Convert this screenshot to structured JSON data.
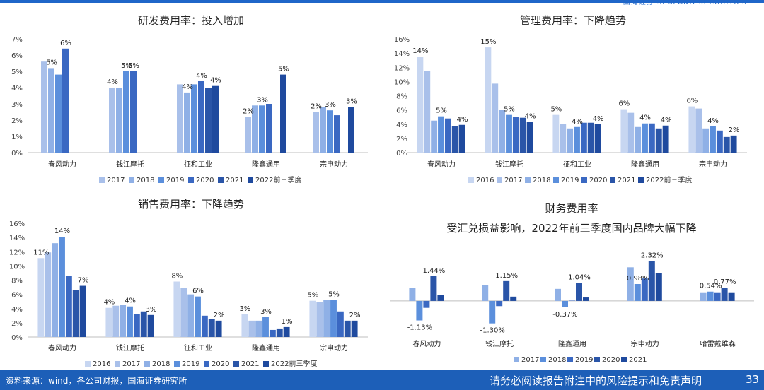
{
  "header": {
    "brand": "国海证券 SEALAND SECURITIES"
  },
  "footer": {
    "source": "资料来源：wind，各公司财报，国海证券研究所",
    "disclaimer": "请务必阅读报告附注中的风险提示和免责声明",
    "page": "33"
  },
  "colors": [
    "#c7d6f1",
    "#a9c0ea",
    "#8fb0e6",
    "#5b8fdc",
    "#3a68c2",
    "#2a55a8",
    "#1f4a9e"
  ],
  "chart_data": [
    {
      "id": "rd",
      "type": "bar",
      "title": "研发费用率：投入增加",
      "categories": [
        "春风动力",
        "钱江摩托",
        "征和工业",
        "隆鑫通用",
        "宗申动力"
      ],
      "yticks": [
        "0%",
        "1%",
        "2%",
        "3%",
        "4%",
        "5%",
        "6%",
        "7%"
      ],
      "ylim": [
        0,
        7
      ],
      "series": [
        {
          "name": "2017",
          "values": [
            5.6,
            4.0,
            4.2,
            2.2,
            2.5
          ]
        },
        {
          "name": "2018",
          "values": [
            5.2,
            4.0,
            3.7,
            2.9,
            2.8
          ]
        },
        {
          "name": "2019",
          "values": [
            4.8,
            5.0,
            4.2,
            2.9,
            2.6
          ]
        },
        {
          "name": "2020",
          "values": [
            6.4,
            5.0,
            4.4,
            3.0,
            2.3
          ]
        },
        {
          "name": "2021",
          "values": [
            null,
            null,
            4.0,
            null,
            null
          ]
        },
        {
          "name": "2022前三季度",
          "values": [
            null,
            null,
            4.1,
            4.8,
            2.8
          ]
        }
      ],
      "labels": [
        {
          "c": 0,
          "s": 1,
          "text": "5%"
        },
        {
          "c": 0,
          "s": 3,
          "text": "6%"
        },
        {
          "c": 1,
          "s": 0,
          "text": "4%"
        },
        {
          "c": 1,
          "s": 2,
          "text": "5%"
        },
        {
          "c": 1,
          "s": 3,
          "text": "5%"
        },
        {
          "c": 2,
          "s": 1,
          "text": "4%"
        },
        {
          "c": 2,
          "s": 3,
          "text": "4%"
        },
        {
          "c": 2,
          "s": 5,
          "text": "4%"
        },
        {
          "c": 3,
          "s": 0,
          "text": "2%"
        },
        {
          "c": 3,
          "s": 2,
          "text": "3%"
        },
        {
          "c": 3,
          "s": 5,
          "text": "5%"
        },
        {
          "c": 4,
          "s": 0,
          "text": "2%"
        },
        {
          "c": 4,
          "s": 2,
          "text": "3%"
        },
        {
          "c": 4,
          "s": 5,
          "text": "3%"
        }
      ]
    },
    {
      "id": "mgmt",
      "type": "bar",
      "title": "管理费用率：下降趋势",
      "categories": [
        "春风动力",
        "钱江摩托",
        "征和工业",
        "隆鑫通用",
        "宗申动力"
      ],
      "yticks": [
        "0%",
        "2%",
        "4%",
        "6%",
        "8%",
        "10%",
        "12%",
        "14%",
        "16%"
      ],
      "ylim": [
        0,
        16
      ],
      "series": [
        {
          "name": "2016",
          "values": [
            13.5,
            14.8,
            5.3,
            6.1,
            6.5
          ]
        },
        {
          "name": "2017",
          "values": [
            11.5,
            9.7,
            4.0,
            5.6,
            6.2
          ]
        },
        {
          "name": "2018",
          "values": [
            4.5,
            6.0,
            3.4,
            3.6,
            3.4
          ]
        },
        {
          "name": "2019",
          "values": [
            5.1,
            5.3,
            3.6,
            4.1,
            3.7
          ]
        },
        {
          "name": "2020",
          "values": [
            4.8,
            5.0,
            4.2,
            4.1,
            3.1
          ]
        },
        {
          "name": "2021",
          "values": [
            3.7,
            4.9,
            4.2,
            3.4,
            2.2
          ]
        },
        {
          "name": "2022前三季度",
          "values": [
            3.9,
            4.3,
            4.0,
            3.8,
            2.4
          ]
        }
      ],
      "labels": [
        {
          "c": 0,
          "s": 0,
          "text": "14%"
        },
        {
          "c": 0,
          "s": 3,
          "text": "5%"
        },
        {
          "c": 0,
          "s": 6,
          "text": "4%"
        },
        {
          "c": 1,
          "s": 0,
          "text": "15%"
        },
        {
          "c": 1,
          "s": 3,
          "text": "5%"
        },
        {
          "c": 1,
          "s": 6,
          "text": "4%"
        },
        {
          "c": 2,
          "s": 0,
          "text": "5%"
        },
        {
          "c": 2,
          "s": 3,
          "text": "4%"
        },
        {
          "c": 2,
          "s": 6,
          "text": "4%"
        },
        {
          "c": 3,
          "s": 0,
          "text": "6%"
        },
        {
          "c": 3,
          "s": 3,
          "text": "4%"
        },
        {
          "c": 3,
          "s": 6,
          "text": "4%"
        },
        {
          "c": 4,
          "s": 0,
          "text": "6%"
        },
        {
          "c": 4,
          "s": 3,
          "text": "4%"
        },
        {
          "c": 4,
          "s": 6,
          "text": "2%"
        }
      ]
    },
    {
      "id": "sales",
      "type": "bar",
      "title": "销售费用率：下降趋势",
      "categories": [
        "春风动力",
        "钱江摩托",
        "征和工业",
        "隆鑫通用",
        "宗申动力"
      ],
      "yticks": [
        "0%",
        "2%",
        "4%",
        "6%",
        "8%",
        "10%",
        "12%",
        "14%",
        "16%"
      ],
      "ylim": [
        0,
        16
      ],
      "series": [
        {
          "name": "2016",
          "values": [
            11.1,
            4.1,
            7.8,
            3.2,
            5.1
          ]
        },
        {
          "name": "2017",
          "values": [
            11.9,
            4.4,
            6.9,
            2.3,
            4.9
          ]
        },
        {
          "name": "2018",
          "values": [
            13.2,
            4.5,
            6.0,
            2.3,
            5.2
          ]
        },
        {
          "name": "2019",
          "values": [
            14.1,
            4.3,
            5.7,
            2.8,
            5.2
          ]
        },
        {
          "name": "2020",
          "values": [
            8.6,
            3.2,
            3.0,
            1.0,
            3.6
          ]
        },
        {
          "name": "2021",
          "values": [
            6.6,
            3.6,
            2.5,
            1.2,
            2.3
          ]
        },
        {
          "name": "2022前三季度",
          "values": [
            7.2,
            3.1,
            2.3,
            1.4,
            2.3
          ]
        }
      ],
      "labels": [
        {
          "c": 0,
          "s": 0,
          "text": "11%"
        },
        {
          "c": 0,
          "s": 3,
          "text": "14%"
        },
        {
          "c": 0,
          "s": 6,
          "text": "7%"
        },
        {
          "c": 1,
          "s": 0,
          "text": "4%"
        },
        {
          "c": 1,
          "s": 3,
          "text": "4%"
        },
        {
          "c": 1,
          "s": 6,
          "text": "3%"
        },
        {
          "c": 2,
          "s": 0,
          "text": "8%"
        },
        {
          "c": 2,
          "s": 3,
          "text": "6%"
        },
        {
          "c": 2,
          "s": 6,
          "text": "2%"
        },
        {
          "c": 3,
          "s": 0,
          "text": "3%"
        },
        {
          "c": 3,
          "s": 3,
          "text": "3%"
        },
        {
          "c": 3,
          "s": 6,
          "text": "1%"
        },
        {
          "c": 4,
          "s": 0,
          "text": "5%"
        },
        {
          "c": 4,
          "s": 3,
          "text": "5%"
        },
        {
          "c": 4,
          "s": 6,
          "text": "2%"
        }
      ]
    },
    {
      "id": "fin",
      "type": "bar",
      "title": "财务费用率",
      "subtitle": "受汇兑损益影响，2022年前三季度国内品牌大幅下降",
      "categories": [
        "春风动力",
        "钱江摩托",
        "隆鑫通用",
        "宗申动力",
        "哈雷戴维森"
      ],
      "ylim": [
        -1.6,
        2.7
      ],
      "series": [
        {
          "name": "2017",
          "values": [
            0.75,
            0.9,
            0.7,
            1.95,
            0.5
          ]
        },
        {
          "name": "2018",
          "values": [
            -1.13,
            -1.3,
            -0.37,
            0.98,
            0.54
          ]
        },
        {
          "name": "2019",
          "values": [
            -0.4,
            -0.3,
            0.02,
            1.3,
            0.5
          ]
        },
        {
          "name": "2020",
          "values": [
            1.44,
            1.15,
            1.04,
            2.32,
            0.77
          ]
        },
        {
          "name": "2021",
          "values": [
            0.35,
            0.25,
            0.2,
            1.6,
            0.5
          ]
        }
      ],
      "labels": [
        {
          "c": 0,
          "s": 1,
          "text": "-1.13%"
        },
        {
          "c": 0,
          "s": 3,
          "text": "1.44%"
        },
        {
          "c": 1,
          "s": 1,
          "text": "-1.30%"
        },
        {
          "c": 1,
          "s": 3,
          "text": "1.15%"
        },
        {
          "c": 2,
          "s": 1,
          "text": "-0.37%"
        },
        {
          "c": 2,
          "s": 3,
          "text": "1.04%"
        },
        {
          "c": 3,
          "s": 1,
          "text": "0.98%"
        },
        {
          "c": 3,
          "s": 3,
          "text": "2.32%"
        },
        {
          "c": 4,
          "s": 1,
          "text": "0.54%"
        },
        {
          "c": 4,
          "s": 3,
          "text": "0.77%"
        }
      ]
    }
  ]
}
